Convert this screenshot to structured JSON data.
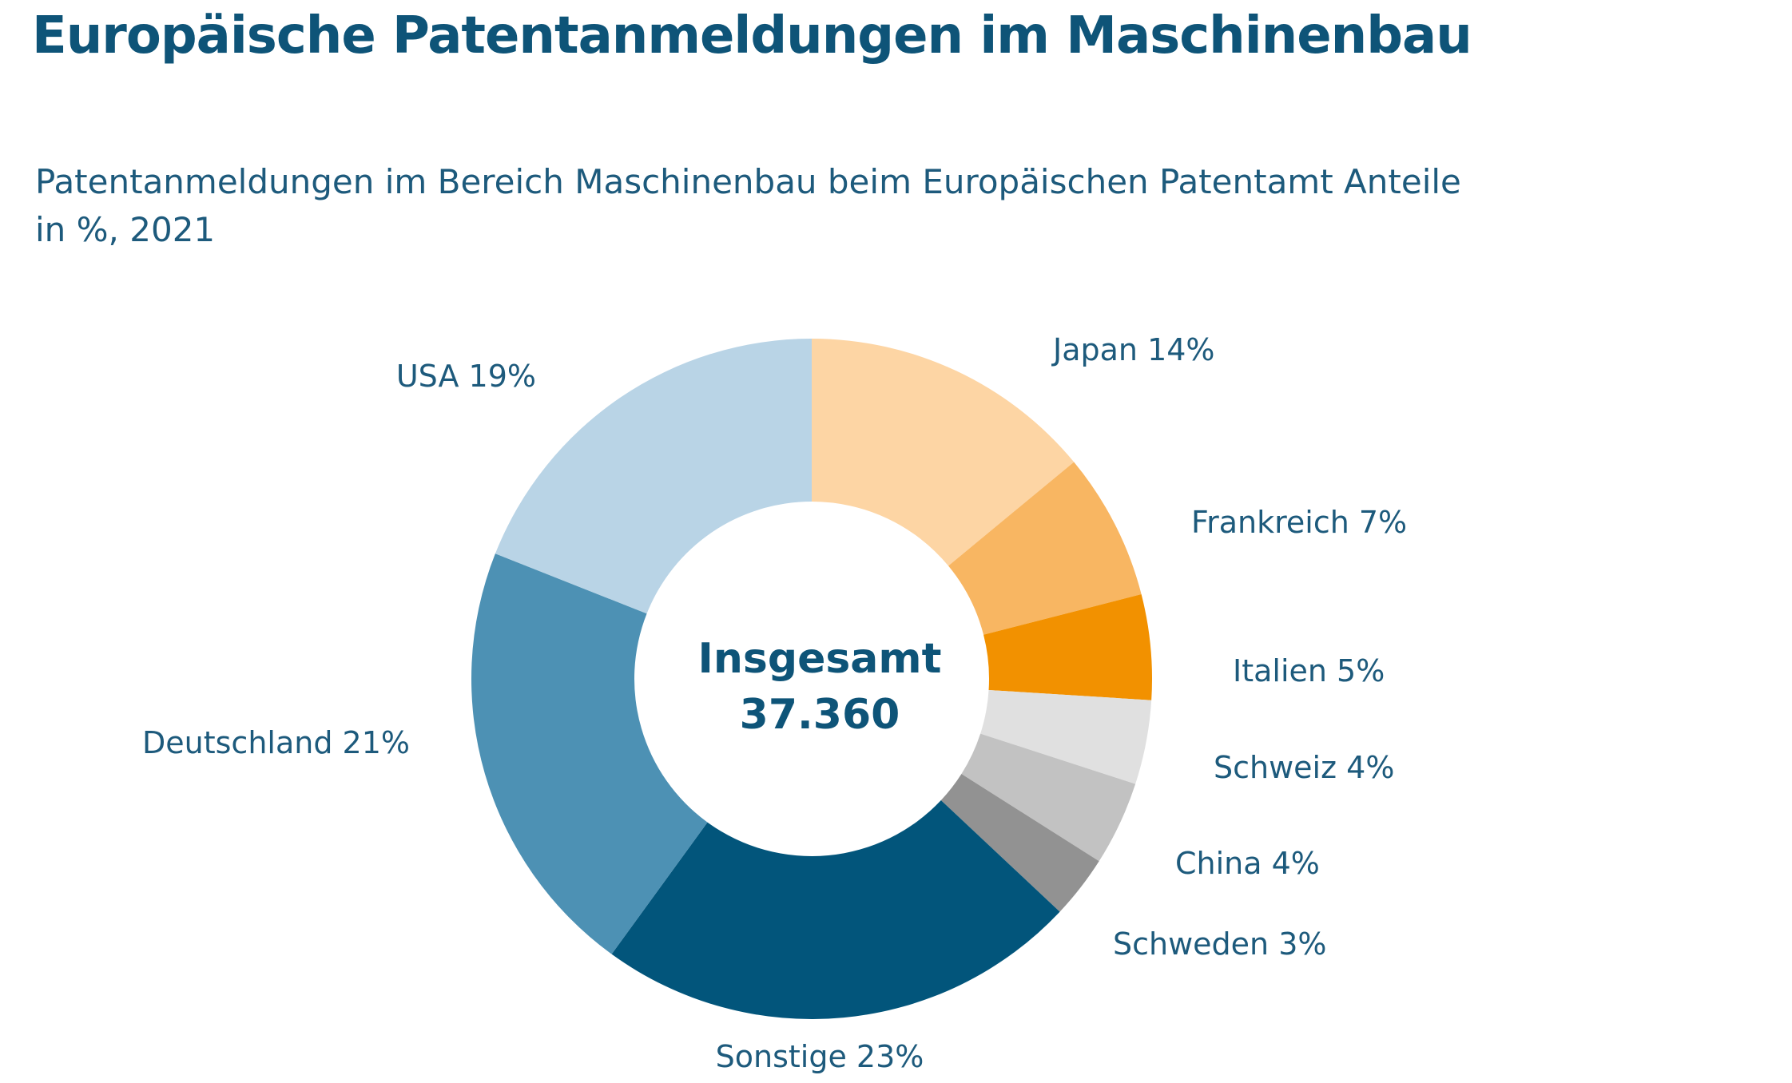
{
  "title": "Europäische Patentanmeldungen im Maschinenbau",
  "subtitle_line1": "Patentanmeldungen im Bereich Maschinenbau beim Europäischen Patentamt Anteile",
  "subtitle_line2": "in %, 2021",
  "center": {
    "label": "Insgesamt",
    "total": "37.360"
  },
  "chart_data": {
    "type": "pie",
    "variant": "donut",
    "title": "Europäische Patentanmeldungen im Maschinenbau",
    "subtitle": "Patentanmeldungen im Bereich Maschinenbau beim Europäischen Patentamt Anteile in %, 2021",
    "unit": "%",
    "slices": [
      {
        "name": "Japan",
        "value": 14,
        "label": "Japan  14%",
        "color": "#fdd5a4"
      },
      {
        "name": "Frankreich",
        "value": 7,
        "label": "Frankreich  7%",
        "color": "#f8b662"
      },
      {
        "name": "Italien",
        "value": 5,
        "label": "Italien  5%",
        "color": "#f29100"
      },
      {
        "name": "Schweiz",
        "value": 4,
        "label": "Schweiz  4%",
        "color": "#e0e0e0"
      },
      {
        "name": "China",
        "value": 4,
        "label": "China  4%",
        "color": "#c2c2c2"
      },
      {
        "name": "Schweden",
        "value": 3,
        "label": "Schweden  3%",
        "color": "#929292"
      },
      {
        "name": "Sonstige",
        "value": 23,
        "label": "Sonstige  23%",
        "color": "#02557b"
      },
      {
        "name": "Deutschland",
        "value": 21,
        "label": "Deutschland  21%",
        "color": "#4d91b4"
      },
      {
        "name": "USA",
        "value": 19,
        "label": "USA  19%",
        "color": "#b9d4e6"
      }
    ],
    "center_label": "Insgesamt",
    "center_value": "37.360"
  }
}
